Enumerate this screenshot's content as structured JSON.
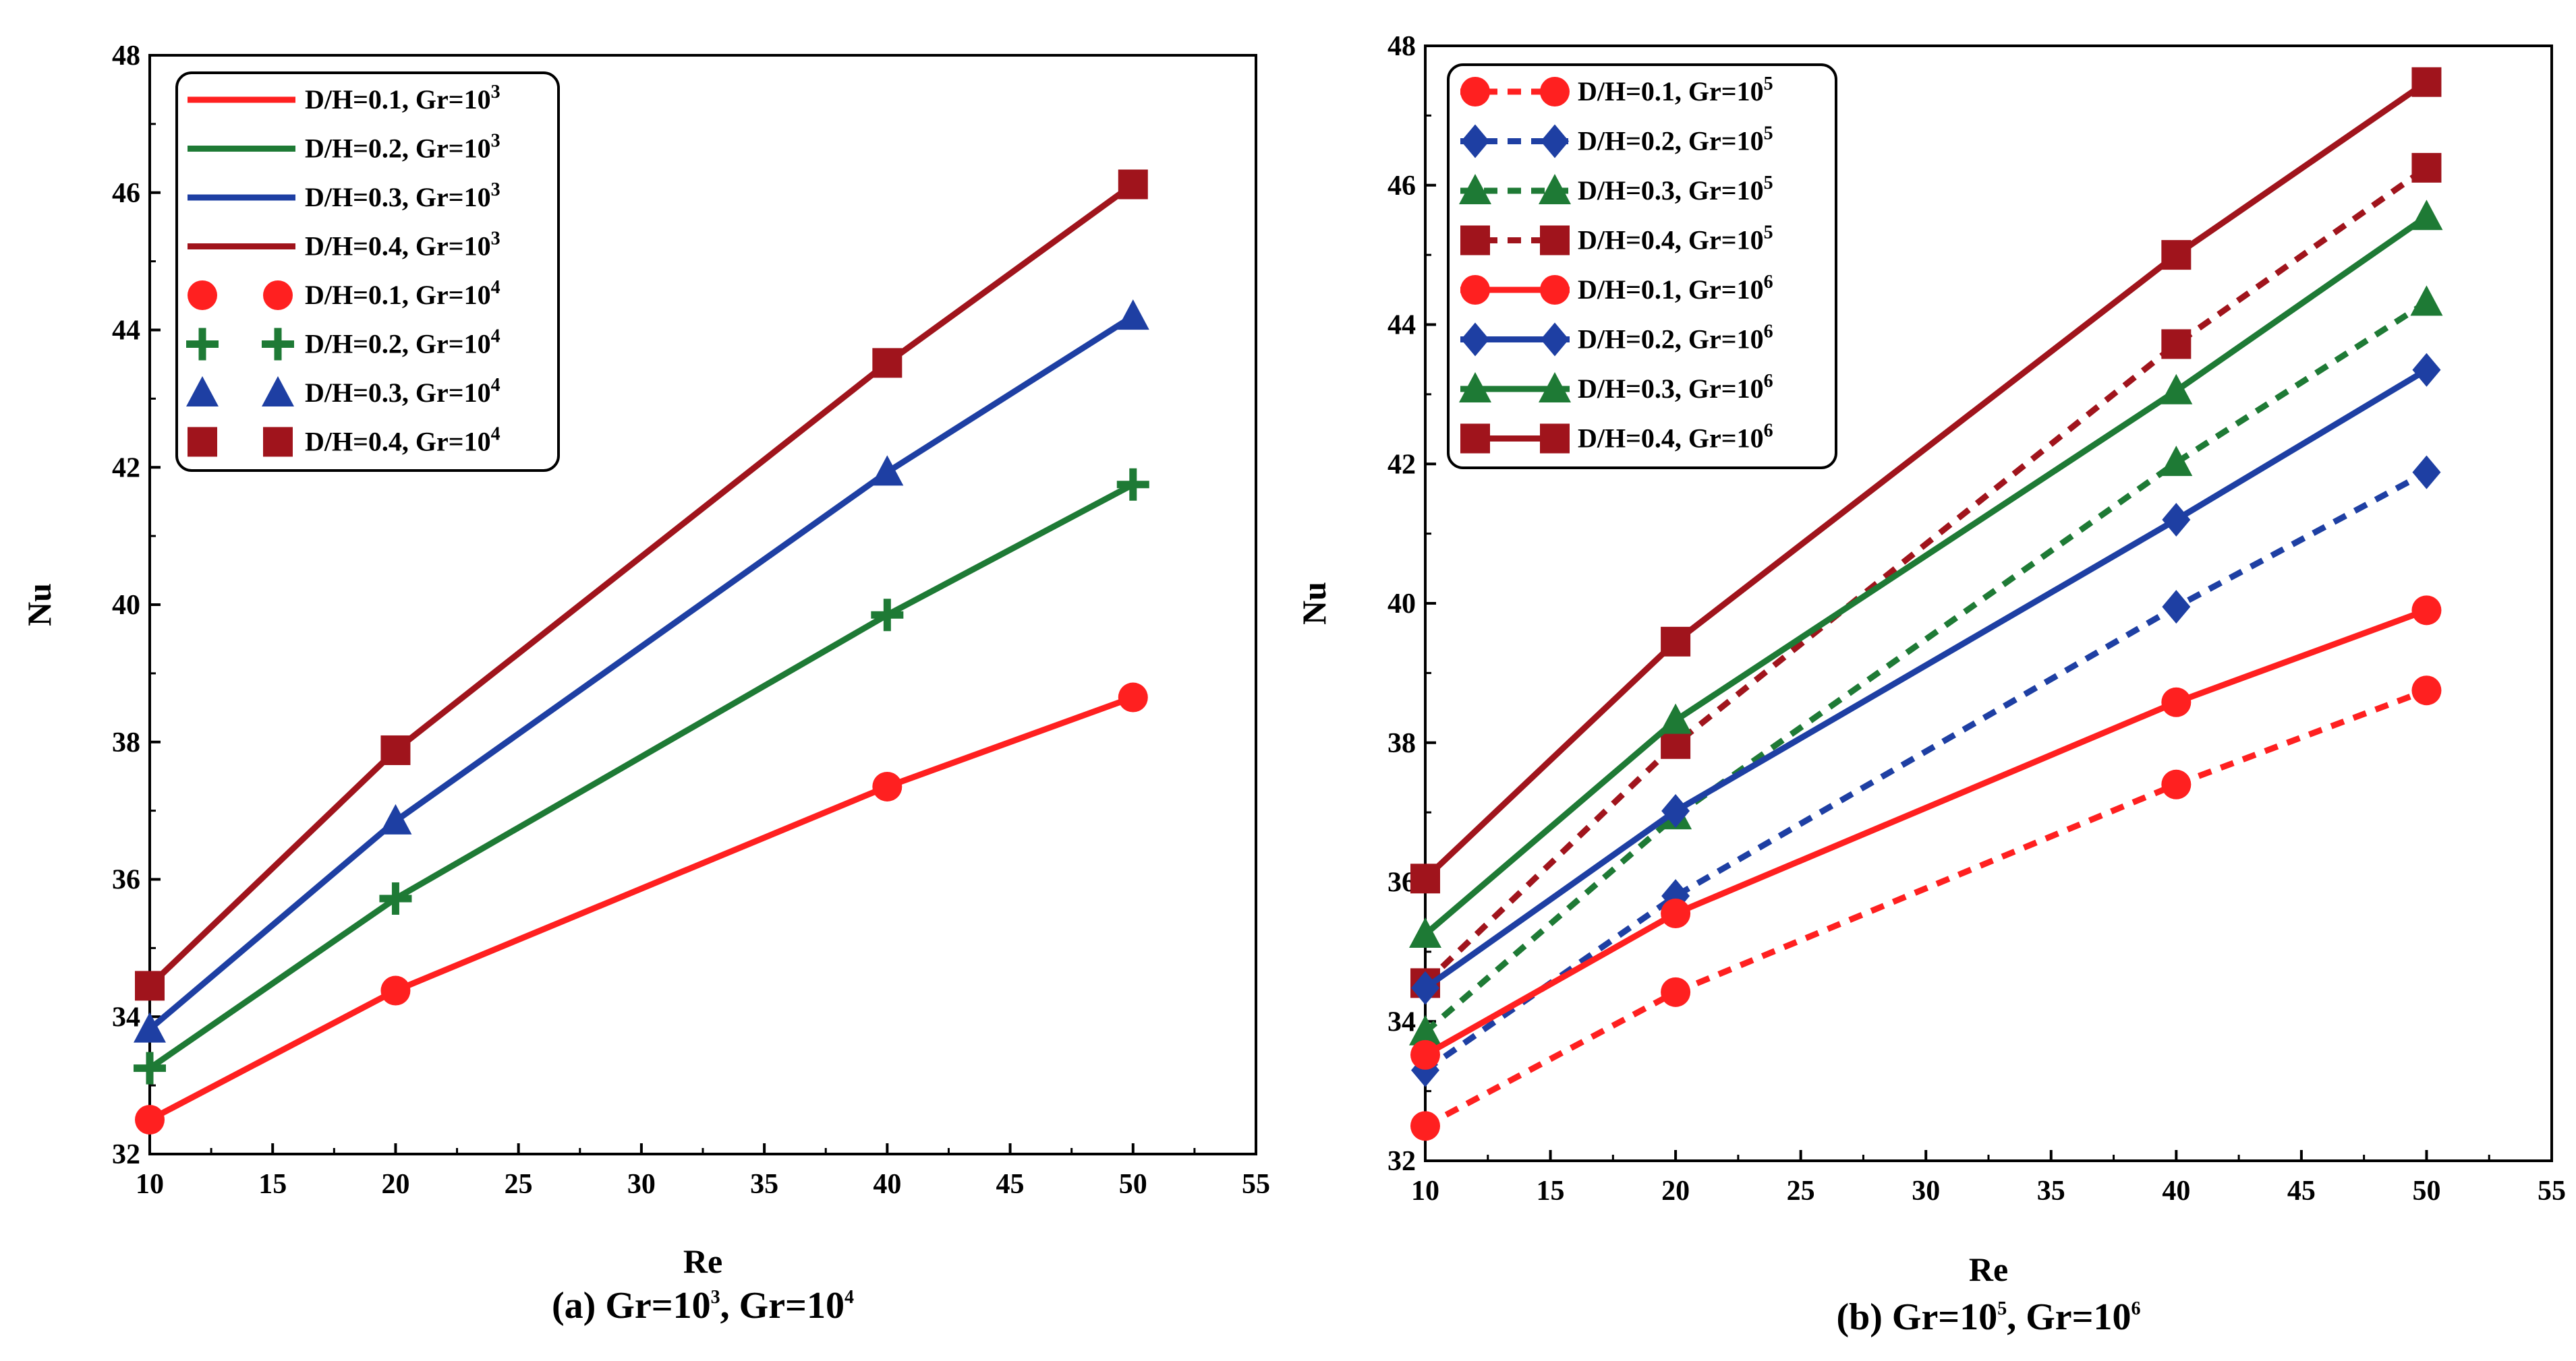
{
  "chart_data": [
    {
      "id": "a",
      "type": "line",
      "caption_parts": [
        "(a) Gr=10",
        "3",
        ", Gr=10",
        "4"
      ],
      "xlabel": "Re",
      "ylabel": "Nu",
      "xlim": [
        10,
        55
      ],
      "ylim": [
        32,
        48
      ],
      "xticks": [
        10,
        15,
        20,
        25,
        30,
        35,
        40,
        45,
        50,
        55
      ],
      "yticks": [
        32,
        34,
        36,
        38,
        40,
        42,
        44,
        46,
        48
      ],
      "x": [
        10,
        20,
        40,
        50
      ],
      "legend_position": "top-left",
      "series": [
        {
          "name": "D/H=0.1, Gr=10",
          "sup": "3",
          "color": "#ff2020",
          "line": "solid",
          "marker": "none",
          "values": [
            32.5,
            34.38,
            37.35,
            38.65
          ],
          "legend_line": true
        },
        {
          "name": "D/H=0.2, Gr=10",
          "sup": "3",
          "color": "#1e7a35",
          "line": "solid",
          "marker": "none",
          "values": [
            33.25,
            35.72,
            39.85,
            41.75
          ],
          "legend_line": true
        },
        {
          "name": "D/H=0.3, Gr=10",
          "sup": "3",
          "color": "#1e3fa3",
          "line": "solid",
          "marker": "none",
          "values": [
            33.82,
            36.85,
            41.93,
            44.2
          ],
          "legend_line": true
        },
        {
          "name": "D/H=0.4, Gr=10",
          "sup": "3",
          "color": "#a0141c",
          "line": "solid",
          "marker": "none",
          "values": [
            34.45,
            37.88,
            43.52,
            46.12
          ],
          "legend_line": true
        },
        {
          "name": "D/H=0.1, Gr=10",
          "sup": "4",
          "color": "#ff2020",
          "line": "none",
          "marker": "circle",
          "values": [
            32.5,
            34.38,
            37.35,
            38.65
          ],
          "legend_line": false
        },
        {
          "name": "D/H=0.2, Gr=10",
          "sup": "4",
          "color": "#1e7a35",
          "line": "none",
          "marker": "plus",
          "values": [
            33.25,
            35.72,
            39.85,
            41.75
          ],
          "legend_line": false
        },
        {
          "name": "D/H=0.3, Gr=10",
          "sup": "4",
          "color": "#1e3fa3",
          "line": "none",
          "marker": "triangle",
          "values": [
            33.82,
            36.85,
            41.93,
            44.2
          ],
          "legend_line": false
        },
        {
          "name": "D/H=0.4, Gr=10",
          "sup": "4",
          "color": "#a0141c",
          "line": "none",
          "marker": "square",
          "values": [
            34.45,
            37.88,
            43.52,
            46.12
          ],
          "legend_line": false
        }
      ]
    },
    {
      "id": "b",
      "type": "line",
      "caption_parts": [
        "(b) Gr=10",
        "5",
        ", Gr=10",
        "6"
      ],
      "xlabel": "Re",
      "ylabel": "Nu",
      "xlim": [
        10,
        55
      ],
      "ylim": [
        32,
        48
      ],
      "xticks": [
        10,
        15,
        20,
        25,
        30,
        35,
        40,
        45,
        50,
        55
      ],
      "yticks": [
        32,
        34,
        36,
        38,
        40,
        42,
        44,
        46,
        48
      ],
      "x": [
        10,
        20,
        40,
        50
      ],
      "legend_position": "top-left",
      "series": [
        {
          "name": "D/H=0.1, Gr=10",
          "sup": "5",
          "color": "#ff2020",
          "line": "dashed",
          "marker": "circle",
          "values": [
            32.5,
            34.42,
            37.4,
            38.75
          ],
          "legend_line": true
        },
        {
          "name": "D/H=0.2, Gr=10",
          "sup": "5",
          "color": "#1e3fa3",
          "line": "dashed",
          "marker": "diamond",
          "values": [
            33.3,
            35.8,
            39.95,
            41.88
          ],
          "legend_line": true
        },
        {
          "name": "D/H=0.3, Gr=10",
          "sup": "5",
          "color": "#1e7a35",
          "line": "dashed",
          "marker": "triangle",
          "values": [
            33.85,
            36.95,
            42.02,
            44.32
          ],
          "legend_line": true
        },
        {
          "name": "D/H=0.4, Gr=10",
          "sup": "5",
          "color": "#a0141c",
          "line": "dashed",
          "marker": "square",
          "values": [
            34.55,
            37.98,
            43.72,
            46.25
          ],
          "legend_line": true
        },
        {
          "name": "D/H=0.1, Gr=10",
          "sup": "6",
          "color": "#ff2020",
          "line": "solid",
          "marker": "circle",
          "values": [
            33.52,
            35.55,
            38.58,
            39.9
          ],
          "legend_line": true
        },
        {
          "name": "D/H=0.2, Gr=10",
          "sup": "6",
          "color": "#1e3fa3",
          "line": "solid",
          "marker": "diamond",
          "values": [
            34.48,
            37.02,
            41.2,
            43.35
          ],
          "legend_line": true
        },
        {
          "name": "D/H=0.3, Gr=10",
          "sup": "6",
          "color": "#1e7a35",
          "line": "solid",
          "marker": "triangle",
          "values": [
            35.25,
            38.32,
            43.05,
            45.55
          ],
          "legend_line": true
        },
        {
          "name": "D/H=0.4, Gr=10",
          "sup": "6",
          "color": "#a0141c",
          "line": "solid",
          "marker": "square",
          "values": [
            36.05,
            39.45,
            45.0,
            47.48
          ],
          "legend_line": true
        }
      ]
    }
  ]
}
